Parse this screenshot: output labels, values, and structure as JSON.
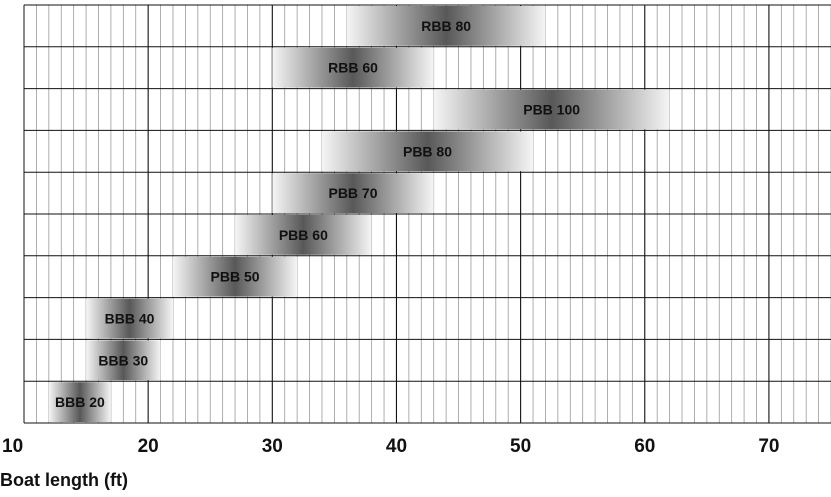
{
  "chart_data": {
    "type": "bar",
    "orientation": "horizontal-range",
    "title": "",
    "xlabel": "Boat length (ft)",
    "ylabel": "",
    "xlim": [
      10,
      75
    ],
    "x_major_ticks": [
      10,
      20,
      30,
      40,
      50,
      60,
      70
    ],
    "x_minor_step": 1,
    "grid": true,
    "legend": "none",
    "series": [
      {
        "name": "BBB 20",
        "start": 12,
        "end": 17
      },
      {
        "name": "BBB 30",
        "start": 15,
        "end": 21
      },
      {
        "name": "BBB 40",
        "start": 15,
        "end": 22
      },
      {
        "name": "PBB 50",
        "start": 22,
        "end": 32
      },
      {
        "name": "PBB 60",
        "start": 27,
        "end": 38
      },
      {
        "name": "PBB 70",
        "start": 30,
        "end": 43
      },
      {
        "name": "PBB 80",
        "start": 34,
        "end": 51
      },
      {
        "name": "PBB 100",
        "start": 43,
        "end": 62
      },
      {
        "name": "RBB 60",
        "start": 30,
        "end": 43
      },
      {
        "name": "RBB 80",
        "start": 36,
        "end": 52
      }
    ],
    "colors": {
      "bar_center": "#5a5a5a",
      "bar_edge": "#f4f4f4",
      "grid": "#111111",
      "background": "#ffffff"
    }
  }
}
